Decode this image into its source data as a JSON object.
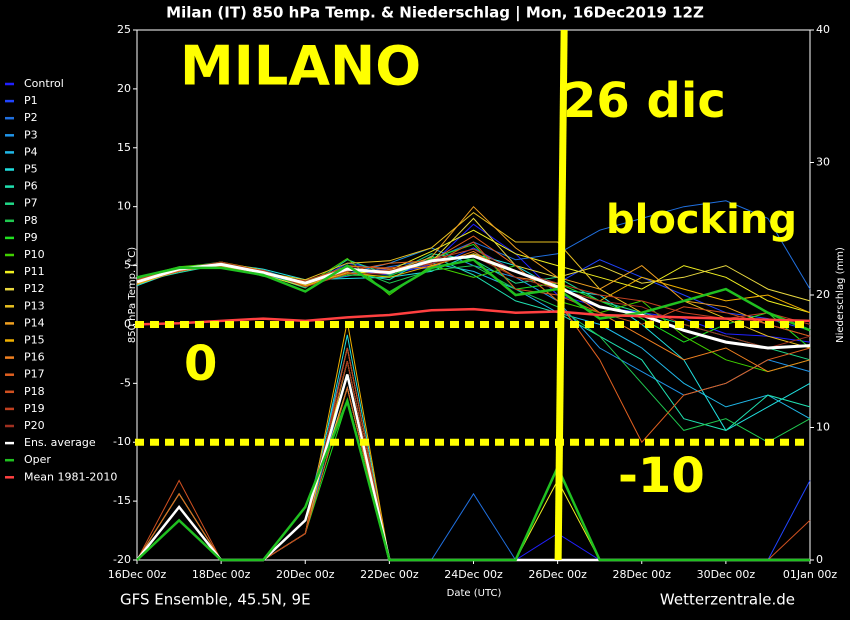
{
  "chart_data": {
    "type": "line",
    "title": "Milan  (IT)  850 hPa Temp. & Niederschlag | Mon, 16Dec2019 12Z",
    "ylabel": "850 hPa Temp. (°C)",
    "y2label": "Niederschlag (mm)",
    "xlabel": "Date (UTC)",
    "footer_left": "GFS Ensemble, 45.5N, 9E",
    "footer_right": "Wetterzentrale.de",
    "x": [
      0,
      24,
      48,
      72,
      96,
      120,
      144,
      168,
      192,
      216,
      240,
      264,
      288,
      312,
      336,
      360,
      384
    ],
    "xlim": [
      0,
      384
    ],
    "xticks": [
      {
        "value": 0,
        "label": "16Dec 00z"
      },
      {
        "value": 48,
        "label": "18Dec 00z"
      },
      {
        "value": 96,
        "label": "20Dec 00z"
      },
      {
        "value": 144,
        "label": "22Dec 00z"
      },
      {
        "value": 192,
        "label": "24Dec 00z"
      },
      {
        "value": 240,
        "label": "26Dec 00z"
      },
      {
        "value": 288,
        "label": "28Dec 00z"
      },
      {
        "value": 336,
        "label": "30Dec 00z"
      },
      {
        "value": 384,
        "label": "01Jan 00z"
      }
    ],
    "ylim": [
      -20,
      25
    ],
    "yticks": [
      -20,
      -15,
      -10,
      -5,
      0,
      5,
      10,
      15,
      20,
      25
    ],
    "y2lim": [
      0,
      40
    ],
    "y2ticks": [
      0,
      10,
      20,
      30,
      40
    ],
    "annotations": [
      "MILANO",
      "26 dic",
      "blocking",
      "0",
      "-10"
    ],
    "annotation_color": "#ffff00",
    "hlines": [
      0,
      -10
    ],
    "vlines": [
      242
    ],
    "series": [
      {
        "name": "Control",
        "color": "#2020ff",
        "values": [
          3.5,
          4.8,
          5.2,
          4.4,
          3.3,
          4.6,
          4.2,
          5.1,
          8.5,
          6,
          2.5,
          1.5,
          1,
          0.5,
          -0.8,
          -1,
          -1.5
        ],
        "precip": [
          0,
          4,
          0,
          0,
          2,
          15,
          0,
          0,
          0,
          0,
          2,
          0,
          0,
          0,
          0,
          0,
          0
        ]
      },
      {
        "name": "P1",
        "color": "#2044ff",
        "values": [
          3.6,
          4.6,
          5,
          4.3,
          3.2,
          5.2,
          4.6,
          4.8,
          6.5,
          4.5,
          3.5,
          5.5,
          4,
          2.5,
          1,
          0.5,
          -0.5
        ],
        "precip": [
          0,
          3,
          0,
          0,
          3,
          13,
          0,
          0,
          0,
          0,
          0,
          0,
          0,
          0,
          0,
          0,
          6
        ]
      },
      {
        "name": "P2",
        "color": "#2070e0",
        "values": [
          3.4,
          4.7,
          5.1,
          4.6,
          3.5,
          4.1,
          4.9,
          5.5,
          7,
          5.5,
          6,
          8,
          9,
          10,
          10.5,
          9,
          3
        ],
        "precip": [
          0,
          5,
          0,
          0,
          2,
          14,
          0,
          0,
          5,
          0,
          0,
          0,
          0,
          0,
          0,
          0,
          0
        ]
      },
      {
        "name": "P3",
        "color": "#2094e8",
        "values": [
          3.7,
          4.5,
          5.3,
          4.2,
          3.6,
          4.3,
          5.2,
          6.5,
          5,
          4,
          2,
          -2,
          -4,
          -6,
          -5,
          -3,
          -4
        ],
        "precip": [
          0,
          4,
          0,
          0,
          3,
          16,
          0,
          0,
          0,
          0,
          0,
          0,
          0,
          0,
          0,
          0,
          0
        ]
      },
      {
        "name": "P4",
        "color": "#20b8e8",
        "values": [
          3.5,
          4.9,
          5,
          4.5,
          3.4,
          4.8,
          4.4,
          5.2,
          4.5,
          3,
          1,
          0,
          -2,
          -5,
          -7,
          -6,
          -8
        ],
        "precip": [
          0,
          3,
          0,
          0,
          4,
          12,
          0,
          0,
          0,
          0,
          0,
          0,
          0,
          0,
          0,
          0,
          0
        ]
      },
      {
        "name": "P5",
        "color": "#20e0e0",
        "values": [
          3.3,
          4.6,
          5.2,
          4.7,
          3.8,
          3.9,
          4,
          4.5,
          6,
          5,
          3,
          2.5,
          0,
          -3,
          -9,
          -7,
          -5
        ],
        "precip": [
          0,
          5,
          0,
          0,
          2,
          17,
          0,
          0,
          0,
          0,
          0,
          0,
          0,
          0,
          0,
          0,
          0
        ]
      },
      {
        "name": "P6",
        "color": "#20e0b0",
        "values": [
          3.6,
          4.4,
          5.1,
          4.4,
          3.3,
          4.4,
          3.8,
          5.8,
          4.2,
          2,
          1,
          -1,
          -3,
          -8,
          -9,
          -6,
          -7
        ],
        "precip": [
          0,
          4,
          0,
          0,
          3,
          14,
          0,
          0,
          0,
          0,
          0,
          0,
          0,
          0,
          0,
          0,
          0
        ]
      },
      {
        "name": "P7",
        "color": "#20d888",
        "values": [
          3.8,
          4.7,
          4.9,
          4.3,
          3.1,
          5.5,
          4.2,
          6,
          5.5,
          3.5,
          4,
          2,
          1,
          0,
          -1,
          -2,
          -3
        ],
        "precip": [
          0,
          3,
          0,
          0,
          2,
          13,
          0,
          0,
          0,
          0,
          0,
          0,
          0,
          0,
          0,
          0,
          0
        ]
      },
      {
        "name": "P8",
        "color": "#20c850",
        "values": [
          3.9,
          4.8,
          5.3,
          4.5,
          3.6,
          4.9,
          3.5,
          4.6,
          5,
          3,
          1.5,
          -1,
          -5,
          -9,
          -8,
          -10,
          -8
        ],
        "precip": [
          0,
          4,
          0,
          0,
          3,
          15,
          0,
          0,
          0,
          0,
          0,
          0,
          0,
          0,
          0,
          0,
          0
        ]
      },
      {
        "name": "P9",
        "color": "#20e020",
        "values": [
          3.5,
          4.6,
          5,
          4.1,
          3.4,
          4.2,
          4.1,
          5.6,
          6.8,
          3,
          3.5,
          2,
          0.5,
          -1.5,
          0,
          1,
          -2
        ],
        "precip": [
          0,
          5,
          0,
          0,
          2,
          12,
          0,
          0,
          0,
          0,
          0,
          0,
          0,
          0,
          0,
          0,
          0
        ]
      },
      {
        "name": "P10",
        "color": "#40d000",
        "values": [
          4,
          4.9,
          5.2,
          4.6,
          3.3,
          5.6,
          2.5,
          5,
          4,
          5,
          2,
          1,
          2,
          -1,
          -3,
          -4,
          -3
        ],
        "precip": [
          0,
          4,
          0,
          0,
          3,
          14,
          0,
          0,
          0,
          0,
          0,
          0,
          0,
          0,
          0,
          0,
          0
        ]
      },
      {
        "name": "P11",
        "color": "#f0f020",
        "values": [
          3.4,
          4.6,
          5,
          4.5,
          3.5,
          4.3,
          4.6,
          6.2,
          8,
          6,
          5,
          4,
          3,
          5,
          4,
          2,
          1
        ],
        "precip": [
          0,
          3,
          0,
          0,
          2,
          15,
          0,
          0,
          0,
          0,
          6,
          0,
          0,
          0,
          0,
          0,
          0
        ]
      },
      {
        "name": "P12",
        "color": "#e8d840",
        "values": [
          3.6,
          4.7,
          5.2,
          4.2,
          3.2,
          4.7,
          4.3,
          5.3,
          9,
          5,
          4,
          5,
          3.5,
          4,
          5,
          3,
          2
        ],
        "precip": [
          0,
          4,
          0,
          0,
          3,
          13,
          0,
          0,
          0,
          0,
          0,
          0,
          0,
          0,
          0,
          0,
          0
        ]
      },
      {
        "name": "P13",
        "color": "#e8c020",
        "values": [
          3.5,
          4.5,
          5.1,
          4.4,
          3.8,
          5.2,
          5.4,
          6.5,
          9.5,
          7,
          7,
          3,
          1,
          2,
          0.5,
          -1,
          -2
        ],
        "precip": [
          0,
          5,
          0,
          0,
          2,
          16,
          0,
          0,
          0,
          0,
          0,
          0,
          0,
          0,
          0,
          0,
          0
        ]
      },
      {
        "name": "P14",
        "color": "#f0a020",
        "values": [
          3.7,
          4.8,
          4.9,
          4.3,
          3.6,
          4.6,
          4.5,
          5.7,
          10,
          6.5,
          4,
          3,
          5,
          2,
          1.5,
          0,
          -1
        ],
        "precip": [
          0,
          4,
          0,
          0,
          3,
          14,
          0,
          0,
          0,
          0,
          0,
          0,
          0,
          0,
          0,
          0,
          0
        ]
      },
      {
        "name": "P15",
        "color": "#f0b000",
        "values": [
          3.4,
          4.6,
          5.3,
          4.6,
          3.3,
          4.4,
          4,
          5,
          6,
          4.5,
          3,
          2,
          4,
          3,
          2,
          2.5,
          1
        ],
        "precip": [
          0,
          3,
          0,
          0,
          2,
          18,
          0,
          0,
          0,
          0,
          0,
          0,
          0,
          0,
          0,
          0,
          0
        ]
      },
      {
        "name": "P16",
        "color": "#f08020",
        "values": [
          3.5,
          4.7,
          5,
          4.5,
          3.5,
          5,
          4.7,
          4.9,
          6.2,
          4,
          3.5,
          1,
          -1,
          -3,
          -2,
          -4,
          -3
        ],
        "precip": [
          0,
          4,
          0,
          0,
          3,
          15,
          0,
          0,
          0,
          0,
          0,
          0,
          0,
          0,
          0,
          0,
          0
        ]
      },
      {
        "name": "P17",
        "color": "#e06020",
        "values": [
          3.6,
          4.5,
          5.2,
          4.4,
          3.4,
          4.5,
          5.2,
          5.4,
          7.5,
          5,
          2,
          -3,
          -10,
          -6,
          -5,
          -3,
          -2
        ],
        "precip": [
          0,
          5,
          0,
          0,
          2,
          13,
          0,
          0,
          0,
          0,
          0,
          0,
          0,
          0,
          0,
          0,
          0
        ]
      },
      {
        "name": "P18",
        "color": "#d05020",
        "values": [
          3.8,
          4.8,
          5.1,
          4.2,
          3.7,
          4.9,
          4.8,
          5.1,
          7,
          3,
          2.5,
          1,
          0,
          1.5,
          1,
          0,
          -1
        ],
        "precip": [
          0,
          6,
          0,
          0,
          3,
          14,
          0,
          0,
          0,
          0,
          0,
          0,
          0,
          0,
          0,
          0,
          3
        ]
      },
      {
        "name": "P19",
        "color": "#c04020",
        "values": [
          3.5,
          4.6,
          5,
          4.6,
          3.2,
          4.3,
          4.3,
          5.5,
          6.4,
          4.5,
          3.5,
          2.5,
          2,
          1,
          0.5,
          1,
          0
        ],
        "precip": [
          0,
          4,
          0,
          0,
          2,
          16,
          0,
          0,
          0,
          0,
          0,
          0,
          0,
          0,
          0,
          0,
          0
        ]
      },
      {
        "name": "P20",
        "color": "#a03020",
        "values": [
          3.6,
          4.7,
          5.3,
          4.5,
          3.4,
          4.6,
          4.6,
          5.2,
          5.8,
          4,
          3,
          2,
          1.5,
          0,
          -1,
          -2,
          -1
        ],
        "precip": [
          0,
          4,
          0,
          0,
          3,
          15,
          0,
          0,
          0,
          0,
          0,
          0,
          0,
          0,
          0,
          0,
          0
        ]
      },
      {
        "name": "Ens. average",
        "color": "#ffffff",
        "values": [
          3.6,
          4.7,
          5.1,
          4.4,
          3.5,
          4.7,
          4.4,
          5.4,
          5.8,
          4.5,
          3.2,
          1.5,
          0.8,
          -0.5,
          -1.5,
          -2,
          -1.8
        ],
        "precip": [
          0,
          4,
          0,
          0,
          3,
          14,
          0,
          0,
          0,
          0,
          0,
          0,
          0,
          0,
          0,
          0,
          0
        ]
      },
      {
        "name": "Oper",
        "color": "#20c020",
        "values": [
          4,
          4.8,
          4.8,
          4.2,
          2.8,
          5,
          2.7,
          4.8,
          5.5,
          2.5,
          3,
          0.5,
          1,
          2,
          3,
          1,
          -0.5
        ],
        "precip": [
          0,
          3,
          0,
          0,
          4,
          12,
          0,
          0,
          0,
          0,
          7,
          0,
          0,
          0,
          0,
          0,
          0
        ]
      },
      {
        "name": "Mean 1981-2010",
        "color": "#ff4040",
        "values": [
          0,
          0.1,
          0.3,
          0.5,
          0.3,
          0.6,
          0.8,
          1.2,
          1.3,
          1,
          1.1,
          0.8,
          0.7,
          0.6,
          0.5,
          0.4,
          0.3
        ]
      }
    ]
  }
}
